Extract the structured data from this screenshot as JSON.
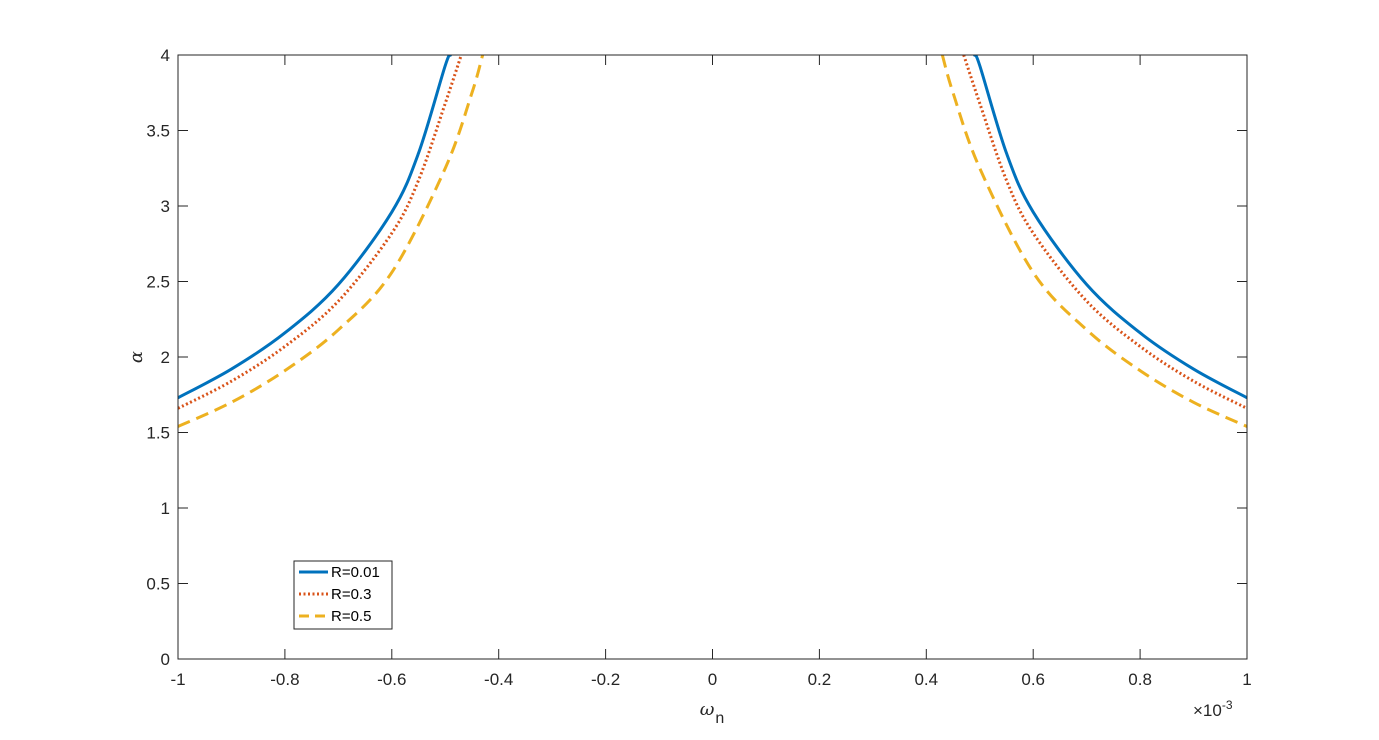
{
  "chart_data": {
    "type": "line",
    "xlabel": "ω",
    "xlabel_sub": "n",
    "ylabel": "α",
    "xlim": [
      -1,
      1
    ],
    "ylim": [
      0,
      4
    ],
    "x_exponent_label": "×10",
    "x_exponent_value": "-3",
    "xticks": [
      "-1",
      "-0.8",
      "-0.6",
      "-0.4",
      "-0.2",
      "0",
      "0.2",
      "0.4",
      "0.6",
      "0.8",
      "1"
    ],
    "yticks": [
      "0",
      "0.5",
      "1",
      "1.5",
      "2",
      "2.5",
      "3",
      "3.5",
      "4"
    ],
    "xtick_values": [
      -1,
      -0.8,
      -0.6,
      -0.4,
      -0.2,
      0,
      0.2,
      0.4,
      0.6,
      0.8,
      1
    ],
    "ytick_values": [
      0,
      0.5,
      1,
      1.5,
      2,
      2.5,
      3,
      3.5,
      4
    ],
    "grid": false,
    "legend_position": "bottom-left",
    "series": [
      {
        "name": "R=0.01",
        "color": "#0072BD",
        "style": "solid",
        "points": [
          [
            -1,
            1.73
          ],
          [
            -0.9,
            1.92
          ],
          [
            -0.8,
            2.16
          ],
          [
            -0.7,
            2.48
          ],
          [
            -0.6,
            2.96
          ],
          [
            -0.55,
            3.35
          ],
          [
            -0.5,
            3.93
          ],
          [
            -0.49,
            4.0
          ]
        ]
      },
      {
        "name": "R=0.3",
        "color": "#D95319",
        "style": "dotted",
        "points": [
          [
            -1,
            1.66
          ],
          [
            -0.9,
            1.84
          ],
          [
            -0.8,
            2.07
          ],
          [
            -0.7,
            2.37
          ],
          [
            -0.6,
            2.82
          ],
          [
            -0.55,
            3.17
          ],
          [
            -0.5,
            3.68
          ],
          [
            -0.47,
            4.0
          ]
        ]
      },
      {
        "name": "R=0.5",
        "color": "#EDB120",
        "style": "dashed",
        "points": [
          [
            -1,
            1.54
          ],
          [
            -0.9,
            1.7
          ],
          [
            -0.8,
            1.91
          ],
          [
            -0.7,
            2.18
          ],
          [
            -0.6,
            2.56
          ],
          [
            -0.5,
            3.25
          ],
          [
            -0.45,
            3.75
          ],
          [
            -0.43,
            4.0
          ]
        ]
      }
    ]
  }
}
